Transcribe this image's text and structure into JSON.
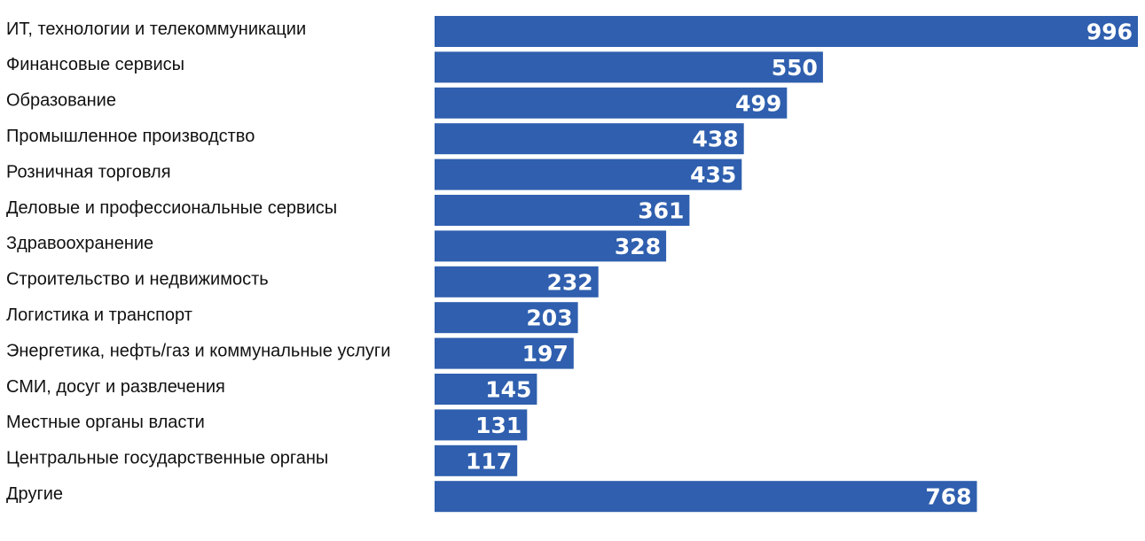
{
  "chart_data": {
    "type": "bar",
    "orientation": "horizontal",
    "categories": [
      "ИТ, технологии и телекоммуникации",
      "Финансовые сервисы",
      "Образование",
      "Промышленное производство",
      "Розничная торговля",
      "Деловые и профессиональные сервисы",
      "Здравоохранение",
      "Строительство и недвижимость",
      "Логистика и транспорт",
      "Энергетика, нефть/газ и коммунальные услуги",
      "СМИ, досуг и развлечения",
      "Местные органы власти",
      "Центральные государственные органы",
      "Другие"
    ],
    "values": [
      996,
      550,
      499,
      438,
      435,
      361,
      328,
      232,
      203,
      197,
      145,
      131,
      117,
      768
    ],
    "value_labels": [
      "996",
      "550",
      "499",
      "438",
      "435",
      "361",
      "328",
      "232",
      "203",
      "197",
      "145",
      "131",
      "117",
      "768"
    ],
    "xlim": [
      0,
      996
    ],
    "bar_color": "#2F5FAE",
    "label_color": "#FFFFFF",
    "grid": false,
    "legend": "none"
  }
}
